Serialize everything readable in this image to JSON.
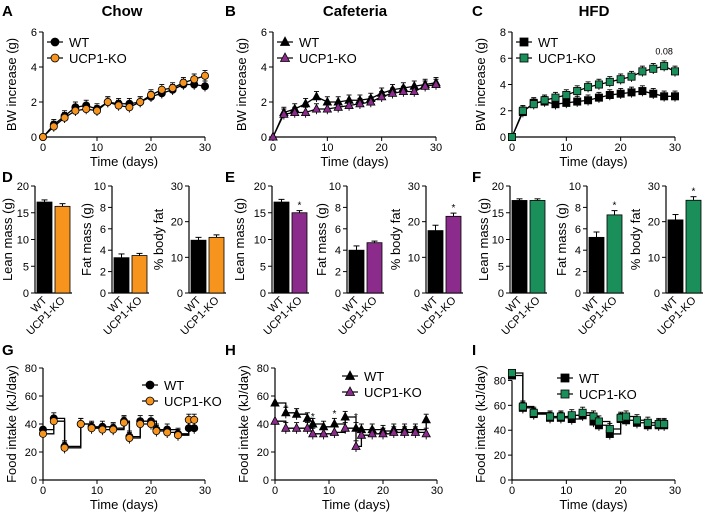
{
  "colors": {
    "wt": "#000000",
    "chow": "#f7941d",
    "caf": "#8b2c8c",
    "hfd": "#1b8f5a"
  },
  "panels": {
    "A": {
      "letter": "A",
      "title": "Chow"
    },
    "B": {
      "letter": "B",
      "title": "Cafeteria"
    },
    "C": {
      "letter": "C",
      "title": "HFD",
      "annotation": "0.08"
    },
    "D": {
      "letter": "D"
    },
    "E": {
      "letter": "E"
    },
    "F": {
      "letter": "F"
    },
    "G": {
      "letter": "G"
    },
    "H": {
      "letter": "H"
    },
    "I": {
      "letter": "I"
    }
  },
  "chart_data": [
    {
      "id": "A",
      "type": "line",
      "title": "Chow",
      "xlabel": "Time (days)",
      "ylabel": "BW increase (g)",
      "xlim": [
        0,
        30
      ],
      "ylim": [
        0,
        6
      ],
      "xticks": [
        0,
        10,
        20,
        30
      ],
      "yticks": [
        0,
        2,
        4,
        6
      ],
      "legend": "top-left",
      "series": [
        {
          "name": "WT",
          "marker": "circle",
          "color": "#000000",
          "x": [
            0,
            2,
            4,
            6,
            8,
            10,
            12,
            14,
            16,
            18,
            20,
            22,
            24,
            26,
            28,
            30
          ],
          "y": [
            0,
            0.7,
            1.2,
            1.7,
            1.8,
            1.6,
            2.0,
            1.9,
            1.9,
            2.0,
            2.3,
            2.5,
            2.7,
            3.0,
            3.0,
            2.9
          ]
        },
        {
          "name": "UCP1-KO",
          "marker": "circle",
          "color": "#f7941d",
          "x": [
            0,
            2,
            4,
            6,
            8,
            10,
            12,
            14,
            16,
            18,
            20,
            22,
            24,
            26,
            28,
            30
          ],
          "y": [
            0,
            0.6,
            1.1,
            1.5,
            1.6,
            1.5,
            2.0,
            1.8,
            1.7,
            2.0,
            2.4,
            2.7,
            2.8,
            3.1,
            3.3,
            3.5
          ]
        }
      ]
    },
    {
      "id": "B",
      "type": "line",
      "title": "Cafeteria",
      "xlabel": "Time (days)",
      "ylabel": "BW increase (g)",
      "xlim": [
        0,
        30
      ],
      "ylim": [
        0,
        6
      ],
      "xticks": [
        0,
        10,
        20,
        30
      ],
      "yticks": [
        0,
        2,
        4,
        6
      ],
      "legend": "top-left",
      "series": [
        {
          "name": "WT",
          "marker": "triangle",
          "color": "#000000",
          "x": [
            0,
            2,
            4,
            6,
            8,
            10,
            12,
            14,
            16,
            18,
            20,
            22,
            24,
            26,
            28,
            30
          ],
          "y": [
            0,
            1.4,
            1.6,
            1.9,
            2.3,
            2.0,
            2.0,
            2.1,
            2.1,
            2.2,
            2.5,
            2.7,
            2.8,
            2.9,
            3.0,
            3.1
          ]
        },
        {
          "name": "UCP1-KO",
          "marker": "triangle",
          "color": "#8b2c8c",
          "x": [
            0,
            2,
            4,
            6,
            8,
            10,
            12,
            14,
            16,
            18,
            20,
            22,
            24,
            26,
            28,
            30
          ],
          "y": [
            0,
            1.3,
            1.4,
            1.4,
            1.6,
            1.6,
            1.7,
            1.8,
            1.9,
            2.0,
            2.3,
            2.5,
            2.6,
            2.6,
            2.9,
            3.0
          ]
        }
      ]
    },
    {
      "id": "C",
      "type": "line",
      "title": "HFD",
      "xlabel": "Time (days)",
      "ylabel": "BW increase (g)",
      "xlim": [
        0,
        30
      ],
      "ylim": [
        0,
        8
      ],
      "xticks": [
        0,
        10,
        20,
        30
      ],
      "yticks": [
        0,
        2,
        4,
        6,
        8
      ],
      "legend": "top-left",
      "annotation": {
        "text": "0.08",
        "x": 28,
        "y": 6.3
      },
      "series": [
        {
          "name": "WT",
          "marker": "square",
          "color": "#000000",
          "x": [
            0,
            2,
            4,
            6,
            8,
            10,
            12,
            14,
            16,
            18,
            20,
            22,
            24,
            26,
            28,
            30
          ],
          "y": [
            0,
            1.9,
            2.6,
            2.7,
            2.5,
            2.6,
            2.7,
            2.8,
            3.0,
            3.2,
            3.3,
            3.4,
            3.5,
            3.3,
            3.1,
            3.1
          ]
        },
        {
          "name": "UCP1-KO",
          "marker": "square",
          "color": "#1b8f5a",
          "x": [
            0,
            2,
            4,
            6,
            8,
            10,
            12,
            14,
            16,
            18,
            20,
            22,
            24,
            26,
            28,
            30
          ],
          "y": [
            0,
            2.0,
            2.5,
            2.8,
            3.0,
            3.2,
            3.5,
            3.8,
            4.0,
            4.2,
            4.4,
            4.6,
            5.0,
            5.2,
            5.4,
            5.0
          ]
        }
      ]
    },
    {
      "id": "D1",
      "type": "bar",
      "ylabel": "Lean mass (g)",
      "categories": [
        "WT",
        "UCP1-KO"
      ],
      "values": [
        17,
        16.2
      ],
      "errors": [
        0.4,
        0.5
      ],
      "colors": [
        "#000000",
        "#f7941d"
      ],
      "ylim": [
        0,
        20
      ],
      "yticks": [
        0,
        5,
        10,
        15,
        20
      ],
      "sig": []
    },
    {
      "id": "D2",
      "type": "bar",
      "ylabel": "Fat mass (g)",
      "categories": [
        "WT",
        "UCP1-KO"
      ],
      "values": [
        3.3,
        3.5
      ],
      "errors": [
        0.35,
        0.2
      ],
      "colors": [
        "#000000",
        "#f7941d"
      ],
      "ylim": [
        0,
        10
      ],
      "yticks": [
        0,
        2,
        4,
        6,
        8,
        10
      ],
      "sig": []
    },
    {
      "id": "D3",
      "type": "bar",
      "ylabel": "% body fat",
      "categories": [
        "WT",
        "UCP1-KO"
      ],
      "values": [
        14.8,
        15.6
      ],
      "errors": [
        0.8,
        0.7
      ],
      "colors": [
        "#000000",
        "#f7941d"
      ],
      "ylim": [
        0,
        30
      ],
      "yticks": [
        0,
        10,
        20,
        30
      ],
      "sig": []
    },
    {
      "id": "E1",
      "type": "bar",
      "ylabel": "Lean mass (g)",
      "categories": [
        "WT",
        "UCP1-KO"
      ],
      "values": [
        17,
        15
      ],
      "errors": [
        0.5,
        0.4
      ],
      "colors": [
        "#000000",
        "#8b2c8c"
      ],
      "ylim": [
        0,
        20
      ],
      "yticks": [
        0,
        5,
        10,
        15,
        20
      ],
      "sig": [
        "",
        "*"
      ]
    },
    {
      "id": "E2",
      "type": "bar",
      "ylabel": "Fat mass (g)",
      "categories": [
        "WT",
        "UCP1-KO"
      ],
      "values": [
        4.0,
        4.7
      ],
      "errors": [
        0.4,
        0.15
      ],
      "colors": [
        "#000000",
        "#8b2c8c"
      ],
      "ylim": [
        0,
        10
      ],
      "yticks": [
        0,
        2,
        4,
        6,
        8,
        10
      ],
      "sig": []
    },
    {
      "id": "E3",
      "type": "bar",
      "ylabel": "% body fat",
      "categories": [
        "WT",
        "UCP1-KO"
      ],
      "values": [
        17.5,
        21.5
      ],
      "errors": [
        1.5,
        0.9
      ],
      "colors": [
        "#000000",
        "#8b2c8c"
      ],
      "ylim": [
        0,
        30
      ],
      "yticks": [
        0,
        10,
        20,
        30
      ],
      "sig": [
        "",
        "*"
      ]
    },
    {
      "id": "F1",
      "type": "bar",
      "ylabel": "Lean mass (g)",
      "categories": [
        "WT",
        "UCP1-KO"
      ],
      "values": [
        17.3,
        17.3
      ],
      "errors": [
        0.3,
        0.3
      ],
      "colors": [
        "#000000",
        "#1b8f5a"
      ],
      "ylim": [
        0,
        20
      ],
      "yticks": [
        0,
        5,
        10,
        15,
        20
      ],
      "sig": []
    },
    {
      "id": "F2",
      "type": "bar",
      "ylabel": "Fat mass (g)",
      "categories": [
        "WT",
        "UCP1-KO"
      ],
      "values": [
        5.2,
        7.3
      ],
      "errors": [
        0.5,
        0.4
      ],
      "colors": [
        "#000000",
        "#1b8f5a"
      ],
      "ylim": [
        0,
        10
      ],
      "yticks": [
        0,
        2,
        4,
        6,
        8,
        10
      ],
      "sig": [
        "",
        "*"
      ]
    },
    {
      "id": "F3",
      "type": "bar",
      "ylabel": "% body fat",
      "categories": [
        "WT",
        "UCP1-KO"
      ],
      "values": [
        20.5,
        26
      ],
      "errors": [
        1.5,
        1.0
      ],
      "colors": [
        "#000000",
        "#1b8f5a"
      ],
      "ylim": [
        0,
        30
      ],
      "yticks": [
        0,
        10,
        20,
        30
      ],
      "sig": [
        "",
        "*"
      ]
    },
    {
      "id": "G",
      "type": "line",
      "step": true,
      "xlabel": "Time (days)",
      "ylabel": "Food intake (kJ/day)",
      "xlim": [
        0,
        30
      ],
      "ylim": [
        0,
        80
      ],
      "xticks": [
        0,
        10,
        20,
        30
      ],
      "yticks": [
        0,
        20,
        40,
        60,
        80
      ],
      "legend": "top-right",
      "series": [
        {
          "name": "WT",
          "marker": "circle",
          "color": "#000000",
          "x": [
            0,
            2,
            4,
            7,
            9,
            11,
            13,
            15,
            16,
            18,
            20,
            21,
            23,
            25,
            27,
            28
          ],
          "y": [
            36,
            44,
            24,
            40,
            38,
            38,
            37,
            42,
            31,
            42,
            42,
            36,
            36,
            33,
            37,
            37
          ]
        },
        {
          "name": "UCP1-KO",
          "marker": "circle",
          "color": "#f7941d",
          "x": [
            0,
            2,
            4,
            7,
            9,
            11,
            13,
            15,
            16,
            18,
            20,
            21,
            23,
            25,
            27,
            28
          ],
          "y": [
            33,
            42,
            23,
            40,
            37,
            36,
            36,
            41,
            30,
            40,
            40,
            35,
            34,
            32,
            43,
            43
          ]
        }
      ]
    },
    {
      "id": "H",
      "type": "line",
      "step": true,
      "xlabel": "Time (days)",
      "ylabel": "Food intake (kJ/day)",
      "xlim": [
        0,
        30
      ],
      "ylim": [
        0,
        80
      ],
      "xticks": [
        0,
        10,
        20,
        30
      ],
      "yticks": [
        0,
        20,
        40,
        60,
        80
      ],
      "legend": "top-right",
      "annotations": [
        {
          "text": "*",
          "x": 2,
          "y": 49
        },
        {
          "text": "*",
          "x": 4,
          "y": 46
        },
        {
          "text": "*",
          "x": 7,
          "y": 43
        },
        {
          "text": "*",
          "x": 11,
          "y": 45
        },
        {
          "text": "*",
          "x": 15,
          "y": 43
        }
      ],
      "series": [
        {
          "name": "WT",
          "marker": "triangle",
          "color": "#000000",
          "x": [
            0,
            2,
            4,
            6,
            7,
            9,
            11,
            13,
            15,
            16,
            18,
            20,
            22,
            24,
            26,
            28
          ],
          "y": [
            55,
            48,
            47,
            44,
            40,
            38,
            40,
            45,
            37,
            36,
            36,
            35,
            36,
            36,
            36,
            43
          ]
        },
        {
          "name": "UCP1-KO",
          "marker": "triangle",
          "color": "#8b2c8c",
          "x": [
            0,
            2,
            4,
            6,
            7,
            9,
            11,
            13,
            15,
            16,
            18,
            20,
            22,
            24,
            26,
            28
          ],
          "y": [
            42,
            37,
            37,
            37,
            33,
            33,
            34,
            37,
            24,
            32,
            33,
            33,
            34,
            34,
            34,
            33
          ]
        }
      ]
    },
    {
      "id": "I",
      "type": "line",
      "step": true,
      "xlabel": "Time (days)",
      "ylabel": "Food intake (kJ/day)",
      "xlim": [
        0,
        30
      ],
      "ylim": [
        0,
        90
      ],
      "xticks": [
        0,
        10,
        20,
        30
      ],
      "yticks": [
        0,
        20,
        40,
        60,
        80
      ],
      "legend": "top-right",
      "series": [
        {
          "name": "WT",
          "marker": "square",
          "color": "#000000",
          "x": [
            0,
            2,
            4,
            7,
            9,
            11,
            13,
            15,
            16,
            18,
            20,
            21,
            23,
            25,
            27,
            28
          ],
          "y": [
            84,
            58,
            53,
            50,
            50,
            49,
            52,
            47,
            44,
            37,
            49,
            48,
            46,
            44,
            44,
            44
          ]
        },
        {
          "name": "UCP1-KO",
          "marker": "square",
          "color": "#1b8f5a",
          "x": [
            0,
            2,
            4,
            7,
            9,
            11,
            13,
            15,
            16,
            18,
            20,
            21,
            23,
            25,
            27,
            28
          ],
          "y": [
            86,
            59,
            54,
            51,
            51,
            52,
            54,
            51,
            47,
            41,
            50,
            51,
            48,
            46,
            45,
            45
          ]
        }
      ]
    }
  ]
}
